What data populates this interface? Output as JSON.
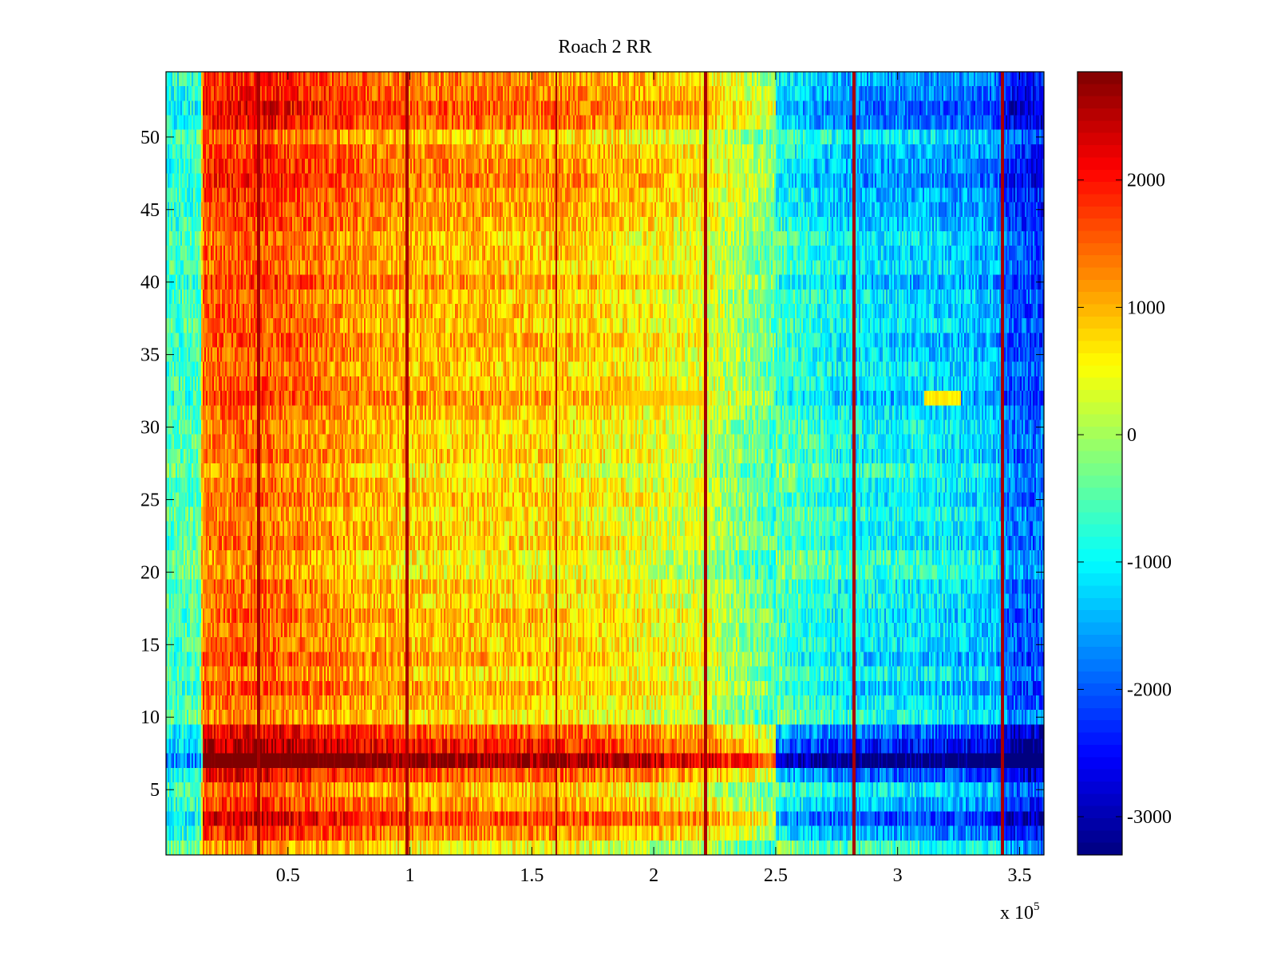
{
  "chart_data": {
    "type": "heatmap",
    "title": "Roach 2 RR",
    "xlabel": "",
    "ylabel": "",
    "x_range": [
      0,
      360000
    ],
    "y_range": [
      0.5,
      54.5
    ],
    "x_exponent_label": "x 10",
    "x_exponent_power": "5",
    "x_ticks": [
      {
        "value": 50000,
        "label": "0.5"
      },
      {
        "value": 100000,
        "label": "1"
      },
      {
        "value": 150000,
        "label": "1.5"
      },
      {
        "value": 200000,
        "label": "2"
      },
      {
        "value": 250000,
        "label": "2.5"
      },
      {
        "value": 300000,
        "label": "3"
      },
      {
        "value": 350000,
        "label": "3.5"
      }
    ],
    "y_ticks": [
      {
        "value": 5,
        "label": "5"
      },
      {
        "value": 10,
        "label": "10"
      },
      {
        "value": 15,
        "label": "15"
      },
      {
        "value": 20,
        "label": "20"
      },
      {
        "value": 25,
        "label": "25"
      },
      {
        "value": 30,
        "label": "30"
      },
      {
        "value": 35,
        "label": "35"
      },
      {
        "value": 40,
        "label": "40"
      },
      {
        "value": 45,
        "label": "45"
      },
      {
        "value": 50,
        "label": "50"
      }
    ],
    "n_rows": 54,
    "colormap": "jet",
    "clim": [
      -3300,
      2850
    ],
    "colorbar_ticks": [
      {
        "value": 2000,
        "label": "2000"
      },
      {
        "value": 1000,
        "label": "1000"
      },
      {
        "value": 0,
        "label": "0"
      },
      {
        "value": -1000,
        "label": "-1000"
      },
      {
        "value": -2000,
        "label": "-2000"
      },
      {
        "value": -3000,
        "label": "-3000"
      }
    ],
    "column_profile": {
      "x": [
        0,
        14000,
        15000,
        40000,
        70000,
        100000,
        160000,
        200000,
        220000,
        250000,
        280000,
        310000,
        340000,
        345000,
        360000
      ],
      "values": [
        -600,
        -500,
        1400,
        1500,
        1200,
        900,
        800,
        500,
        300,
        -500,
        -1000,
        -1100,
        -1300,
        -1900,
        -2000
      ]
    },
    "vertical_lines": [
      38000,
      99000,
      160000,
      221000,
      282000,
      343000
    ],
    "vertical_line_value": 2600,
    "row_profile": {
      "rows": [
        1,
        2,
        3,
        4,
        5,
        6,
        7,
        8,
        9,
        10,
        11,
        12,
        13,
        14,
        15,
        16,
        17,
        18,
        19,
        20,
        21,
        22,
        23,
        24,
        25,
        26,
        27,
        28,
        29,
        30,
        31,
        32,
        33,
        34,
        35,
        36,
        37,
        38,
        39,
        40,
        41,
        42,
        43,
        44,
        45,
        46,
        47,
        48,
        49,
        50,
        51,
        52,
        53,
        54
      ],
      "values": [
        -300,
        400,
        900,
        300,
        0,
        700,
        1900,
        1100,
        700,
        -200,
        0,
        200,
        -100,
        200,
        0,
        0,
        100,
        -100,
        0,
        -300,
        -300,
        0,
        -100,
        -200,
        0,
        -100,
        -300,
        0,
        -100,
        -100,
        0,
        300,
        100,
        0,
        100,
        200,
        0,
        100,
        0,
        300,
        0,
        100,
        0,
        200,
        300,
        300,
        500,
        400,
        300,
        0,
        600,
        700,
        500,
        400
      ]
    },
    "bright_streaks": [
      {
        "row": 32,
        "x_start": 185000,
        "x_end": 222000,
        "value": 900
      },
      {
        "row": 32,
        "x_start": 311000,
        "x_end": 326000,
        "value": 650
      }
    ]
  }
}
